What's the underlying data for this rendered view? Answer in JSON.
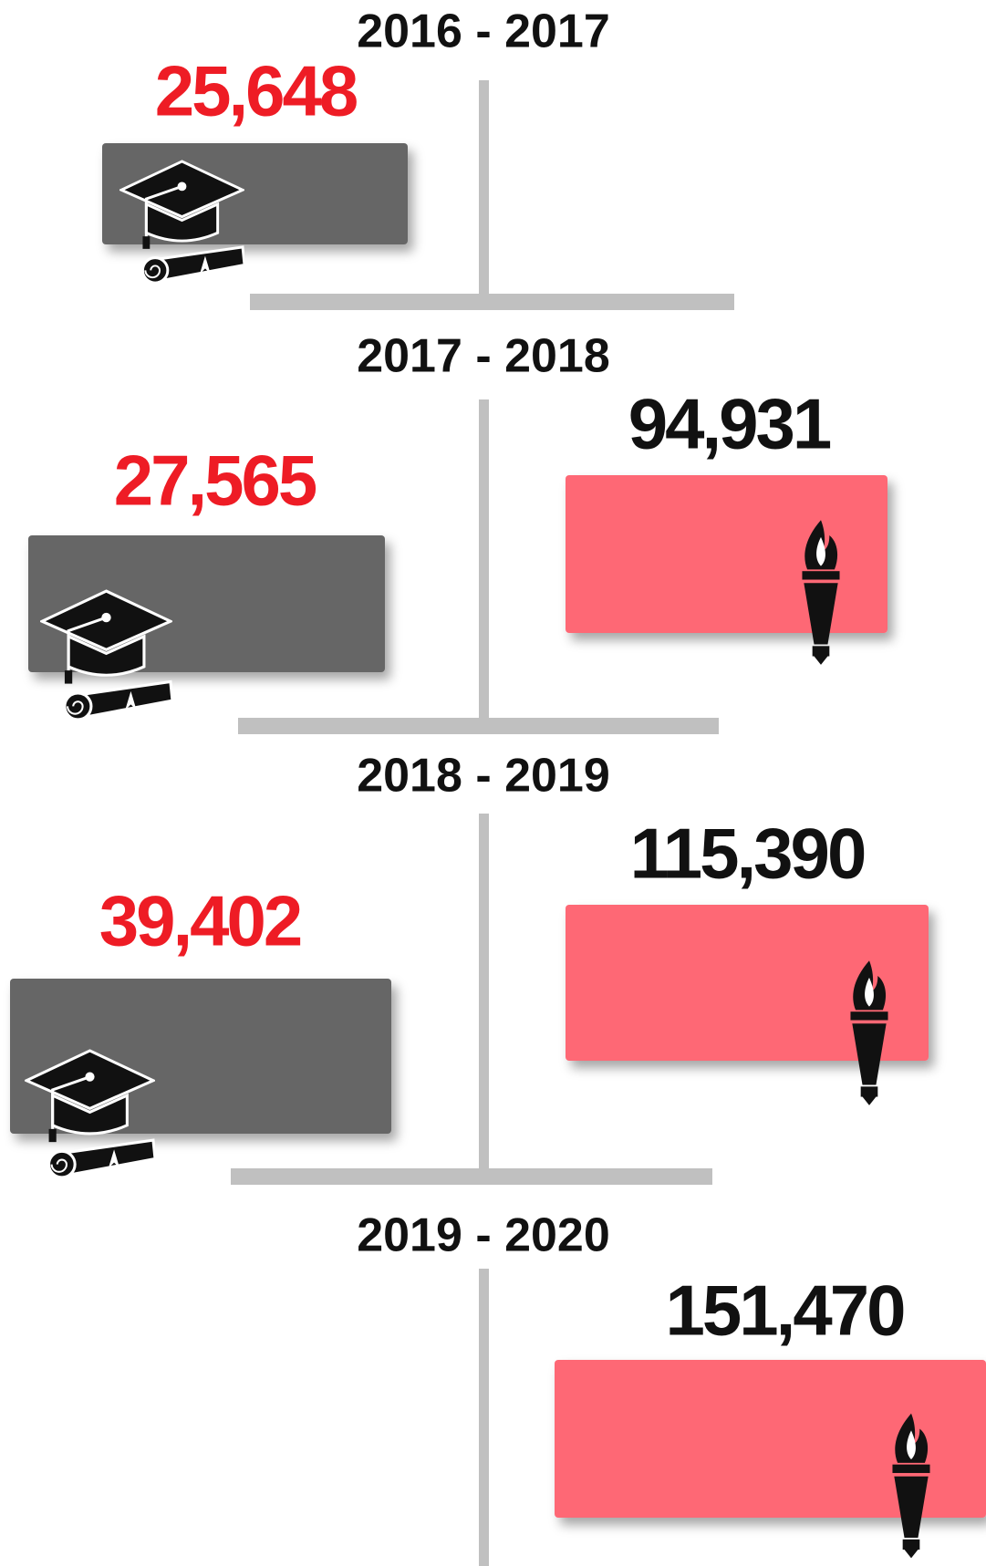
{
  "periods": [
    {
      "label": "2016 - 2017",
      "grey": "25,648"
    },
    {
      "label": "2017 - 2018",
      "grey": "27,565",
      "pink": "94,931"
    },
    {
      "label": "2018 - 2019",
      "grey": "39,402",
      "pink": "115,390"
    },
    {
      "label": "2019 - 2020",
      "pink": "151,470"
    }
  ]
}
